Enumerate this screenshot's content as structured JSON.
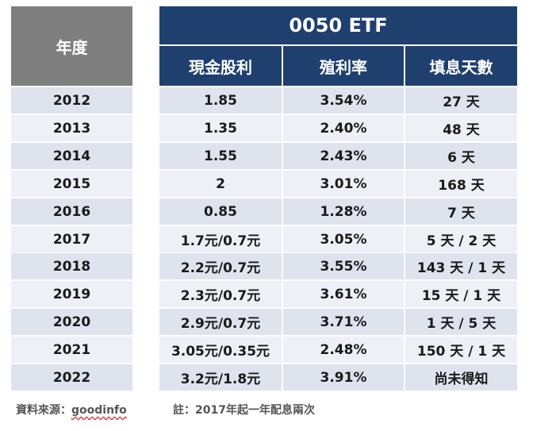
{
  "table": {
    "year_header": "年度",
    "title": "0050 ETF",
    "columns": [
      "現金股利",
      "殖利率",
      "填息天數"
    ],
    "rows": [
      {
        "year": "2012",
        "dividend": "1.85",
        "yield": "3.54%",
        "fill_days": "27 天"
      },
      {
        "year": "2013",
        "dividend": "1.35",
        "yield": "2.40%",
        "fill_days": "48 天"
      },
      {
        "year": "2014",
        "dividend": "1.55",
        "yield": "2.43%",
        "fill_days": "6 天"
      },
      {
        "year": "2015",
        "dividend": "2",
        "yield": "3.01%",
        "fill_days": "168 天"
      },
      {
        "year": "2016",
        "dividend": "0.85",
        "yield": "1.28%",
        "fill_days": "7 天"
      },
      {
        "year": "2017",
        "dividend": "1.7元/0.7元",
        "yield": "3.05%",
        "fill_days": "5 天 / 2 天"
      },
      {
        "year": "2018",
        "dividend": "2.2元/0.7元",
        "yield": "3.55%",
        "fill_days": "143 天 / 1 天"
      },
      {
        "year": "2019",
        "dividend": "2.3元/0.7元",
        "yield": "3.61%",
        "fill_days": "15 天 / 1 天"
      },
      {
        "year": "2020",
        "dividend": "2.9元/0.7元",
        "yield": "3.71%",
        "fill_days": "1 天 / 5 天"
      },
      {
        "year": "2021",
        "dividend": "3.05元/0.35元",
        "yield": "2.48%",
        "fill_days": "150 天 / 1 天"
      },
      {
        "year": "2022",
        "dividend": "3.2元/1.8元",
        "yield": "3.91%",
        "fill_days": "尚未得知"
      }
    ]
  },
  "footer": {
    "source_label": "資料來源：",
    "source_name": "goodinfo",
    "note": "註：2017年起一年配息兩次"
  },
  "colors": {
    "header_navy": "#1f3f6f",
    "header_gray": "#7f7f7f",
    "row_odd": "#dfe3ee",
    "row_even": "#edf0f6"
  }
}
